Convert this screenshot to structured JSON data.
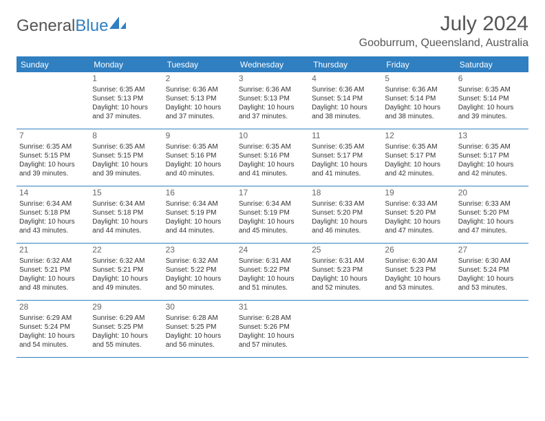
{
  "logo": {
    "word1": "General",
    "word2": "Blue"
  },
  "title": "July 2024",
  "location": "Gooburrum, Queensland, Australia",
  "colors": {
    "accent": "#2f7fc1",
    "text": "#333333",
    "heading": "#555555",
    "background": "#ffffff"
  },
  "day_headers": [
    "Sunday",
    "Monday",
    "Tuesday",
    "Wednesday",
    "Thursday",
    "Friday",
    "Saturday"
  ],
  "weeks": [
    [
      null,
      {
        "n": "1",
        "sr": "Sunrise: 6:35 AM",
        "ss": "Sunset: 5:13 PM",
        "d1": "Daylight: 10 hours",
        "d2": "and 37 minutes."
      },
      {
        "n": "2",
        "sr": "Sunrise: 6:36 AM",
        "ss": "Sunset: 5:13 PM",
        "d1": "Daylight: 10 hours",
        "d2": "and 37 minutes."
      },
      {
        "n": "3",
        "sr": "Sunrise: 6:36 AM",
        "ss": "Sunset: 5:13 PM",
        "d1": "Daylight: 10 hours",
        "d2": "and 37 minutes."
      },
      {
        "n": "4",
        "sr": "Sunrise: 6:36 AM",
        "ss": "Sunset: 5:14 PM",
        "d1": "Daylight: 10 hours",
        "d2": "and 38 minutes."
      },
      {
        "n": "5",
        "sr": "Sunrise: 6:36 AM",
        "ss": "Sunset: 5:14 PM",
        "d1": "Daylight: 10 hours",
        "d2": "and 38 minutes."
      },
      {
        "n": "6",
        "sr": "Sunrise: 6:35 AM",
        "ss": "Sunset: 5:14 PM",
        "d1": "Daylight: 10 hours",
        "d2": "and 39 minutes."
      }
    ],
    [
      {
        "n": "7",
        "sr": "Sunrise: 6:35 AM",
        "ss": "Sunset: 5:15 PM",
        "d1": "Daylight: 10 hours",
        "d2": "and 39 minutes."
      },
      {
        "n": "8",
        "sr": "Sunrise: 6:35 AM",
        "ss": "Sunset: 5:15 PM",
        "d1": "Daylight: 10 hours",
        "d2": "and 39 minutes."
      },
      {
        "n": "9",
        "sr": "Sunrise: 6:35 AM",
        "ss": "Sunset: 5:16 PM",
        "d1": "Daylight: 10 hours",
        "d2": "and 40 minutes."
      },
      {
        "n": "10",
        "sr": "Sunrise: 6:35 AM",
        "ss": "Sunset: 5:16 PM",
        "d1": "Daylight: 10 hours",
        "d2": "and 41 minutes."
      },
      {
        "n": "11",
        "sr": "Sunrise: 6:35 AM",
        "ss": "Sunset: 5:17 PM",
        "d1": "Daylight: 10 hours",
        "d2": "and 41 minutes."
      },
      {
        "n": "12",
        "sr": "Sunrise: 6:35 AM",
        "ss": "Sunset: 5:17 PM",
        "d1": "Daylight: 10 hours",
        "d2": "and 42 minutes."
      },
      {
        "n": "13",
        "sr": "Sunrise: 6:35 AM",
        "ss": "Sunset: 5:17 PM",
        "d1": "Daylight: 10 hours",
        "d2": "and 42 minutes."
      }
    ],
    [
      {
        "n": "14",
        "sr": "Sunrise: 6:34 AM",
        "ss": "Sunset: 5:18 PM",
        "d1": "Daylight: 10 hours",
        "d2": "and 43 minutes."
      },
      {
        "n": "15",
        "sr": "Sunrise: 6:34 AM",
        "ss": "Sunset: 5:18 PM",
        "d1": "Daylight: 10 hours",
        "d2": "and 44 minutes."
      },
      {
        "n": "16",
        "sr": "Sunrise: 6:34 AM",
        "ss": "Sunset: 5:19 PM",
        "d1": "Daylight: 10 hours",
        "d2": "and 44 minutes."
      },
      {
        "n": "17",
        "sr": "Sunrise: 6:34 AM",
        "ss": "Sunset: 5:19 PM",
        "d1": "Daylight: 10 hours",
        "d2": "and 45 minutes."
      },
      {
        "n": "18",
        "sr": "Sunrise: 6:33 AM",
        "ss": "Sunset: 5:20 PM",
        "d1": "Daylight: 10 hours",
        "d2": "and 46 minutes."
      },
      {
        "n": "19",
        "sr": "Sunrise: 6:33 AM",
        "ss": "Sunset: 5:20 PM",
        "d1": "Daylight: 10 hours",
        "d2": "and 47 minutes."
      },
      {
        "n": "20",
        "sr": "Sunrise: 6:33 AM",
        "ss": "Sunset: 5:20 PM",
        "d1": "Daylight: 10 hours",
        "d2": "and 47 minutes."
      }
    ],
    [
      {
        "n": "21",
        "sr": "Sunrise: 6:32 AM",
        "ss": "Sunset: 5:21 PM",
        "d1": "Daylight: 10 hours",
        "d2": "and 48 minutes."
      },
      {
        "n": "22",
        "sr": "Sunrise: 6:32 AM",
        "ss": "Sunset: 5:21 PM",
        "d1": "Daylight: 10 hours",
        "d2": "and 49 minutes."
      },
      {
        "n": "23",
        "sr": "Sunrise: 6:32 AM",
        "ss": "Sunset: 5:22 PM",
        "d1": "Daylight: 10 hours",
        "d2": "and 50 minutes."
      },
      {
        "n": "24",
        "sr": "Sunrise: 6:31 AM",
        "ss": "Sunset: 5:22 PM",
        "d1": "Daylight: 10 hours",
        "d2": "and 51 minutes."
      },
      {
        "n": "25",
        "sr": "Sunrise: 6:31 AM",
        "ss": "Sunset: 5:23 PM",
        "d1": "Daylight: 10 hours",
        "d2": "and 52 minutes."
      },
      {
        "n": "26",
        "sr": "Sunrise: 6:30 AM",
        "ss": "Sunset: 5:23 PM",
        "d1": "Daylight: 10 hours",
        "d2": "and 53 minutes."
      },
      {
        "n": "27",
        "sr": "Sunrise: 6:30 AM",
        "ss": "Sunset: 5:24 PM",
        "d1": "Daylight: 10 hours",
        "d2": "and 53 minutes."
      }
    ],
    [
      {
        "n": "28",
        "sr": "Sunrise: 6:29 AM",
        "ss": "Sunset: 5:24 PM",
        "d1": "Daylight: 10 hours",
        "d2": "and 54 minutes."
      },
      {
        "n": "29",
        "sr": "Sunrise: 6:29 AM",
        "ss": "Sunset: 5:25 PM",
        "d1": "Daylight: 10 hours",
        "d2": "and 55 minutes."
      },
      {
        "n": "30",
        "sr": "Sunrise: 6:28 AM",
        "ss": "Sunset: 5:25 PM",
        "d1": "Daylight: 10 hours",
        "d2": "and 56 minutes."
      },
      {
        "n": "31",
        "sr": "Sunrise: 6:28 AM",
        "ss": "Sunset: 5:26 PM",
        "d1": "Daylight: 10 hours",
        "d2": "and 57 minutes."
      },
      null,
      null,
      null
    ]
  ]
}
